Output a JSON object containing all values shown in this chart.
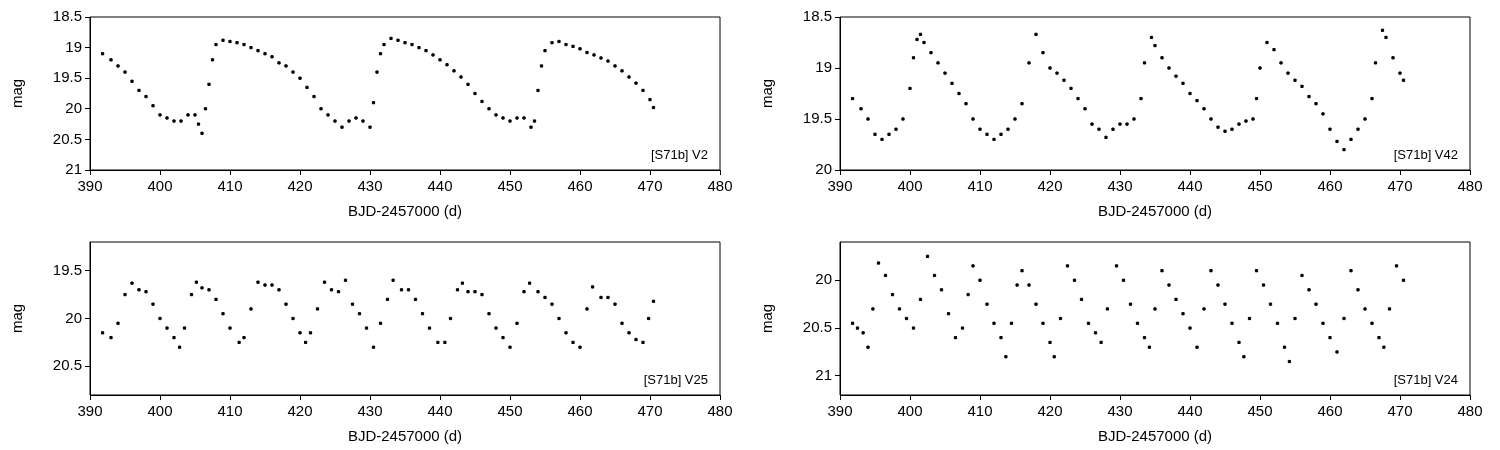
{
  "chart_data": [
    {
      "type": "scatter",
      "xlabel": "BJD-2457000 (d)",
      "ylabel": "mag",
      "annotations": [
        "[S71b] V2"
      ],
      "color": "#000000",
      "marker": "square",
      "xlim": [
        390,
        480
      ],
      "xticks": [
        390,
        400,
        410,
        420,
        430,
        440,
        450,
        460,
        470,
        480
      ],
      "ylim": [
        21,
        18.5
      ],
      "yticks": [
        18.5,
        19,
        19.5,
        20,
        20.5,
        21
      ],
      "x": [
        391.8,
        393,
        394,
        395,
        396,
        397,
        398,
        399,
        400,
        401,
        402,
        403,
        404,
        405,
        405.5,
        406,
        406.5,
        407,
        407.5,
        408,
        409,
        410,
        411,
        412,
        413,
        414,
        415,
        416,
        417,
        418,
        419,
        420,
        421,
        422,
        423,
        424,
        425,
        426,
        427,
        428,
        429,
        430,
        430.5,
        431,
        431.5,
        432,
        433,
        434,
        435,
        436,
        437,
        438,
        439,
        440,
        441,
        442,
        443,
        444,
        445,
        446,
        447,
        448,
        449,
        450,
        451,
        452,
        453,
        453.5,
        454,
        454.5,
        455,
        456,
        457,
        458,
        459,
        460,
        461,
        462,
        463,
        464,
        465,
        466,
        467,
        468,
        469,
        470,
        470.5
      ],
      "values": [
        19.1,
        19.2,
        19.3,
        19.4,
        19.55,
        19.7,
        19.8,
        19.95,
        20.1,
        20.15,
        20.2,
        20.2,
        20.1,
        20.1,
        20.25,
        20.4,
        20.0,
        19.6,
        19.2,
        18.95,
        18.88,
        18.9,
        18.92,
        18.95,
        19.0,
        19.05,
        19.1,
        19.15,
        19.25,
        19.3,
        19.4,
        19.5,
        19.65,
        19.8,
        20.0,
        20.1,
        20.2,
        20.3,
        20.2,
        20.15,
        20.2,
        20.3,
        19.9,
        19.4,
        19.1,
        18.95,
        18.85,
        18.88,
        18.92,
        18.95,
        19.0,
        19.05,
        19.12,
        19.2,
        19.28,
        19.38,
        19.48,
        19.6,
        19.75,
        19.88,
        20.0,
        20.1,
        20.15,
        20.2,
        20.15,
        20.15,
        20.3,
        20.2,
        19.7,
        19.3,
        19.05,
        18.92,
        18.9,
        18.95,
        18.98,
        19.02,
        19.08,
        19.12,
        19.17,
        19.22,
        19.3,
        19.38,
        19.48,
        19.58,
        19.7,
        19.85,
        19.98
      ]
    },
    {
      "type": "scatter",
      "xlabel": "BJD-2457000 (d)",
      "ylabel": "mag",
      "annotations": [
        "[S71b] V42"
      ],
      "color": "#000000",
      "marker": "square",
      "xlim": [
        390,
        480
      ],
      "xticks": [
        390,
        400,
        410,
        420,
        430,
        440,
        450,
        460,
        470,
        480
      ],
      "ylim": [
        20,
        18.5
      ],
      "yticks": [
        18.5,
        19,
        19.5,
        20
      ],
      "x": [
        391.8,
        393,
        394,
        395,
        396,
        397,
        398,
        399,
        400,
        400.5,
        401,
        401.5,
        402,
        403,
        404,
        405,
        406,
        407,
        408,
        409,
        410,
        411,
        412,
        413,
        414,
        415,
        416,
        417,
        418,
        419,
        420,
        421,
        422,
        423,
        424,
        425,
        426,
        427,
        428,
        429,
        430,
        431,
        432,
        433,
        433.5,
        434.5,
        435,
        436,
        437,
        438,
        439,
        440,
        441,
        442,
        443,
        444,
        445,
        446,
        447,
        448,
        449,
        449.5,
        450,
        451,
        452,
        453,
        454,
        455,
        456,
        457,
        458,
        459,
        460,
        461,
        462,
        463,
        464,
        465,
        466,
        466.5,
        467.5,
        468,
        469,
        470,
        470.5
      ],
      "values": [
        19.3,
        19.4,
        19.5,
        19.65,
        19.7,
        19.65,
        19.6,
        19.5,
        19.2,
        18.9,
        18.72,
        18.67,
        18.75,
        18.85,
        18.95,
        19.05,
        19.15,
        19.25,
        19.35,
        19.5,
        19.6,
        19.65,
        19.7,
        19.65,
        19.6,
        19.5,
        19.35,
        18.95,
        18.67,
        18.85,
        19.0,
        19.05,
        19.12,
        19.2,
        19.3,
        19.4,
        19.55,
        19.6,
        19.68,
        19.6,
        19.55,
        19.55,
        19.5,
        19.3,
        18.95,
        18.7,
        18.78,
        18.9,
        19.0,
        19.08,
        19.15,
        19.25,
        19.32,
        19.4,
        19.5,
        19.58,
        19.62,
        19.6,
        19.55,
        19.52,
        19.5,
        19.3,
        19.0,
        18.75,
        18.82,
        18.95,
        19.05,
        19.12,
        19.18,
        19.28,
        19.35,
        19.45,
        19.6,
        19.72,
        19.8,
        19.7,
        19.6,
        19.5,
        19.3,
        18.95,
        18.63,
        18.7,
        18.9,
        19.05,
        19.12
      ]
    },
    {
      "type": "scatter",
      "xlabel": "BJD-2457000 (d)",
      "ylabel": "mag",
      "annotations": [
        "[S71b] V25"
      ],
      "color": "#000000",
      "marker": "square",
      "xlim": [
        390,
        480
      ],
      "xticks": [
        390,
        400,
        410,
        420,
        430,
        440,
        450,
        460,
        470,
        480
      ],
      "ylim": [
        20.8,
        19.2
      ],
      "yticks": [
        19.5,
        20,
        20.5
      ],
      "x": [
        391.8,
        393,
        394,
        395,
        396,
        397,
        398,
        399,
        400,
        401,
        402,
        402.8,
        403.5,
        404.5,
        405.2,
        406,
        407,
        408,
        409,
        410,
        411.3,
        412,
        413,
        414,
        415,
        416,
        417,
        418,
        419,
        420,
        420.8,
        421.5,
        422.5,
        423.5,
        424.5,
        425.5,
        426.5,
        427.5,
        428.5,
        429.5,
        430.5,
        431.5,
        432.5,
        433.3,
        434.5,
        435.5,
        436.5,
        437.5,
        438.5,
        439.7,
        440.7,
        441.5,
        442.5,
        443.2,
        444,
        445,
        446,
        447,
        448,
        449,
        450,
        451,
        452,
        452.8,
        454,
        455,
        456,
        457,
        458,
        459,
        460,
        461,
        461.8,
        463,
        464,
        465,
        466,
        467,
        468,
        469,
        469.8,
        470.5
      ],
      "values": [
        20.15,
        20.2,
        20.05,
        19.75,
        19.63,
        19.7,
        19.72,
        19.85,
        20.0,
        20.1,
        20.2,
        20.3,
        20.1,
        19.75,
        19.62,
        19.68,
        19.7,
        19.8,
        19.95,
        20.1,
        20.25,
        20.2,
        19.9,
        19.62,
        19.65,
        19.65,
        19.7,
        19.85,
        20.0,
        20.15,
        20.25,
        20.15,
        19.9,
        19.62,
        19.7,
        19.72,
        19.6,
        19.85,
        19.95,
        20.1,
        20.3,
        20.05,
        19.8,
        19.6,
        19.7,
        19.7,
        19.8,
        19.95,
        20.1,
        20.25,
        20.25,
        20.0,
        19.7,
        19.63,
        19.72,
        19.72,
        19.75,
        19.95,
        20.1,
        20.2,
        20.3,
        20.05,
        19.72,
        19.63,
        19.72,
        19.78,
        19.85,
        20.0,
        20.15,
        20.25,
        20.3,
        19.9,
        19.67,
        19.78,
        19.78,
        19.85,
        20.05,
        20.15,
        20.22,
        20.25,
        20.0,
        19.82
      ]
    },
    {
      "type": "scatter",
      "xlabel": "BJD-2457000 (d)",
      "ylabel": "mag",
      "annotations": [
        "[S71b] V24"
      ],
      "color": "#000000",
      "marker": "square",
      "xlim": [
        390,
        480
      ],
      "xticks": [
        390,
        400,
        410,
        420,
        430,
        440,
        450,
        460,
        470,
        480
      ],
      "ylim": [
        21.2,
        19.6
      ],
      "yticks": [
        20,
        20.5,
        21
      ],
      "x": [
        391.8,
        392.5,
        393.3,
        394,
        394.7,
        395.5,
        396.5,
        397.5,
        398.5,
        399.5,
        400.5,
        401.5,
        402.5,
        403.5,
        404.5,
        405.5,
        406.5,
        407.5,
        408.3,
        409,
        410,
        411,
        412,
        413,
        413.7,
        414.5,
        415.3,
        416,
        417,
        418,
        419,
        420,
        420.6,
        421.5,
        422.5,
        423.5,
        424.5,
        425.5,
        426.5,
        427.3,
        428.2,
        429.5,
        430.5,
        431.5,
        432.5,
        433.5,
        434.2,
        435,
        436,
        437,
        438,
        439,
        440,
        441,
        442,
        443,
        444,
        445,
        446,
        447,
        447.7,
        448.5,
        449.5,
        450.5,
        451.5,
        452.5,
        453.5,
        454.2,
        455,
        456,
        457,
        458,
        459,
        460,
        461,
        462,
        463,
        464,
        465,
        466,
        467,
        467.7,
        468.5,
        469.5,
        470.5
      ],
      "values": [
        20.45,
        20.5,
        20.55,
        20.7,
        20.3,
        19.82,
        19.95,
        20.15,
        20.3,
        20.4,
        20.5,
        20.2,
        19.75,
        19.95,
        20.1,
        20.35,
        20.6,
        20.5,
        20.15,
        19.85,
        20.0,
        20.25,
        20.45,
        20.6,
        20.8,
        20.45,
        20.05,
        19.9,
        20.05,
        20.25,
        20.45,
        20.65,
        20.8,
        20.4,
        19.85,
        20.0,
        20.2,
        20.45,
        20.55,
        20.65,
        20.3,
        19.85,
        20.0,
        20.25,
        20.45,
        20.6,
        20.7,
        20.3,
        19.9,
        20.05,
        20.2,
        20.35,
        20.5,
        20.7,
        20.3,
        19.9,
        20.05,
        20.25,
        20.45,
        20.65,
        20.8,
        20.4,
        19.9,
        20.05,
        20.25,
        20.45,
        20.7,
        20.85,
        20.4,
        19.95,
        20.1,
        20.25,
        20.45,
        20.6,
        20.75,
        20.4,
        19.9,
        20.1,
        20.3,
        20.45,
        20.6,
        20.7,
        20.3,
        19.85,
        20.0
      ]
    }
  ]
}
